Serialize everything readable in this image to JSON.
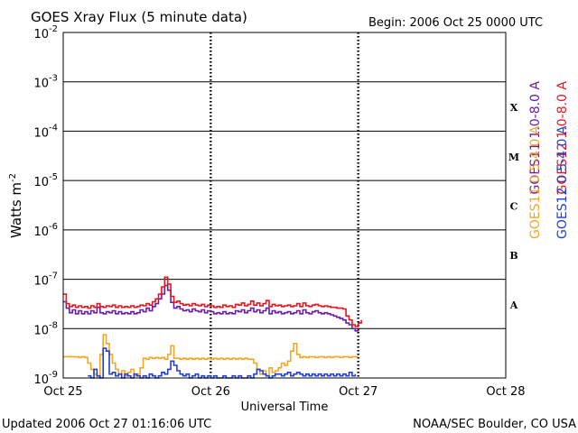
{
  "header": {
    "title": "GOES Xray Flux (5 minute data)",
    "begin": "Begin:  2006 Oct 25 0000 UTC"
  },
  "footer": {
    "updated": "Updated 2006 Oct 27 01:16:06 UTC",
    "source": "NOAA/SEC Boulder, CO USA"
  },
  "chart_data": {
    "type": "line",
    "title": "GOES Xray Flux (5 minute data)",
    "xlabel": "Universal Time",
    "ylabel_base": "Watts m",
    "ylabel_exp": "-2",
    "y_scale": "log",
    "ylim": [
      1e-09,
      0.01
    ],
    "y_ticks": [
      {
        "value": 0.01,
        "base": "10",
        "exp": "-2"
      },
      {
        "value": 0.001,
        "base": "10",
        "exp": "-3"
      },
      {
        "value": 0.0001,
        "base": "10",
        "exp": "-4"
      },
      {
        "value": 1e-05,
        "base": "10",
        "exp": "-5"
      },
      {
        "value": 1e-06,
        "base": "10",
        "exp": "-6"
      },
      {
        "value": 1e-07,
        "base": "10",
        "exp": "-7"
      },
      {
        "value": 1e-08,
        "base": "10",
        "exp": "-8"
      },
      {
        "value": 1e-09,
        "base": "10",
        "exp": "-9"
      }
    ],
    "x_unit": "hours since 2006 Oct 25 0000 UTC",
    "xlim": [
      0,
      72
    ],
    "x_ticks": [
      {
        "value": 0,
        "label": "Oct 25"
      },
      {
        "value": 24,
        "label": "Oct 26"
      },
      {
        "value": 48,
        "label": "Oct 27"
      },
      {
        "value": 72,
        "label": "Oct 28"
      }
    ],
    "flare_classes": [
      {
        "label": "X",
        "low": 0.0001,
        "high": 0.001
      },
      {
        "label": "M",
        "low": 1e-05,
        "high": 0.0001
      },
      {
        "label": "C",
        "low": 1e-06,
        "high": 1e-05
      },
      {
        "label": "B",
        "low": 1e-07,
        "high": 1e-06
      },
      {
        "label": "A",
        "low": 1e-08,
        "high": 1e-07
      }
    ],
    "gridlines": "horizontal at each decade; dashed vertical at each day",
    "legend_placement": "right",
    "series": [
      {
        "name": "GOES11 1.0-8.0 A",
        "color": "#6a1ba8",
        "x": [
          0,
          0.5,
          1,
          1.5,
          2,
          2.5,
          3,
          3.5,
          4,
          4.5,
          5,
          5.5,
          6,
          6.5,
          7,
          7.5,
          8,
          8.5,
          9,
          9.5,
          10,
          10.5,
          11,
          11.5,
          12,
          12.5,
          13,
          13.5,
          14,
          14.5,
          15,
          15.5,
          16,
          16.5,
          17,
          17.5,
          18,
          18.5,
          19,
          19.5,
          20,
          20.5,
          21,
          21.5,
          22,
          22.5,
          23,
          23.5,
          24,
          24.5,
          25,
          25.5,
          26,
          26.5,
          27,
          27.5,
          28,
          28.5,
          29,
          29.5,
          30,
          30.5,
          31,
          31.5,
          32,
          32.5,
          33,
          33.5,
          34,
          34.5,
          35,
          35.5,
          36,
          36.5,
          37,
          37.5,
          38,
          38.5,
          39,
          39.5,
          40,
          40.5,
          41,
          41.5,
          42,
          42.5,
          43,
          43.5,
          44,
          44.5,
          45,
          45.5,
          46,
          46.5,
          47,
          47.5,
          48
        ],
        "y": [
          3.5e-08,
          2.6e-08,
          2.1e-08,
          2.4e-08,
          2e-08,
          2.3e-08,
          2e-08,
          2.2e-08,
          2e-08,
          2.3e-08,
          2.1e-08,
          2.7e-08,
          2.1e-08,
          2e-08,
          2.2e-08,
          2.1e-08,
          2.3e-08,
          2e-08,
          2.2e-08,
          2e-08,
          2.1e-08,
          2e-08,
          2.2e-08,
          2e-08,
          2.1e-08,
          2.4e-08,
          2.2e-08,
          2.6e-08,
          2.3e-08,
          2.8e-08,
          3.2e-08,
          4e-08,
          5e-08,
          7.5e-08,
          6e-08,
          3.4e-08,
          2.6e-08,
          2.8e-08,
          2.5e-08,
          2.3e-08,
          2.4e-08,
          2.2e-08,
          2.5e-08,
          2.3e-08,
          2.2e-08,
          2.4e-08,
          2.1e-08,
          2.3e-08,
          2.2e-08,
          2e-08,
          2.1e-08,
          2e-08,
          2.2e-08,
          2e-08,
          2.1e-08,
          2e-08,
          2.3e-08,
          2.2e-08,
          2.4e-08,
          2.1e-08,
          2.3e-08,
          2.6e-08,
          2.2e-08,
          2.4e-08,
          2.1e-08,
          2.3e-08,
          2.6e-08,
          2e-08,
          2.3e-08,
          2.1e-08,
          2.2e-08,
          2e-08,
          2.1e-08,
          2.2e-08,
          2e-08,
          2.1e-08,
          2.3e-08,
          2e-08,
          2.4e-08,
          2.1e-08,
          2e-08,
          2.2e-08,
          2.3e-08,
          2.1e-08,
          2e-08,
          2.1e-08,
          2e-08,
          1.9e-08,
          1.8e-08,
          1.7e-08,
          1.6e-08,
          1.5e-08,
          1.3e-08,
          1.2e-08,
          1e-08,
          9e-09,
          9.5e-09
        ]
      },
      {
        "name": "GOES12 1.0-8.0 A",
        "color": "#e8141e",
        "x": [
          0,
          0.5,
          1,
          1.5,
          2,
          2.5,
          3,
          3.5,
          4,
          4.5,
          5,
          5.5,
          6,
          6.5,
          7,
          7.5,
          8,
          8.5,
          9,
          9.5,
          10,
          10.5,
          11,
          11.5,
          12,
          12.5,
          13,
          13.5,
          14,
          14.5,
          15,
          15.5,
          16,
          16.5,
          17,
          17.5,
          18,
          18.5,
          19,
          19.5,
          20,
          20.5,
          21,
          21.5,
          22,
          22.5,
          23,
          23.5,
          24,
          24.5,
          25,
          25.5,
          26,
          26.5,
          27,
          27.5,
          28,
          28.5,
          29,
          29.5,
          30,
          30.5,
          31,
          31.5,
          32,
          32.5,
          33,
          33.5,
          34,
          34.5,
          35,
          35.5,
          36,
          36.5,
          37,
          37.5,
          38,
          38.5,
          39,
          39.5,
          40,
          40.5,
          41,
          41.5,
          42,
          42.5,
          43,
          43.5,
          44,
          44.5,
          45,
          45.5,
          46,
          46.5,
          47,
          47.5,
          48,
          48.5
        ],
        "y": [
          5e-08,
          3.2e-08,
          2.8e-08,
          3e-08,
          2.7e-08,
          2.9e-08,
          2.7e-08,
          2.8e-08,
          2.6e-08,
          2.9e-08,
          2.7e-08,
          3.2e-08,
          2.8e-08,
          2.7e-08,
          2.9e-08,
          2.8e-08,
          3e-08,
          2.7e-08,
          2.9e-08,
          2.7e-08,
          2.8e-08,
          2.7e-08,
          2.9e-08,
          2.7e-08,
          2.8e-08,
          3e-08,
          2.9e-08,
          3.2e-08,
          3e-08,
          3.5e-08,
          4e-08,
          5e-08,
          7e-08,
          1.1e-07,
          8e-08,
          4.5e-08,
          3.4e-08,
          3.6e-08,
          3.2e-08,
          3e-08,
          3.1e-08,
          2.9e-08,
          3.2e-08,
          3e-08,
          2.9e-08,
          3.1e-08,
          2.8e-08,
          3e-08,
          2.9e-08,
          2.7e-08,
          2.8e-08,
          2.7e-08,
          3e-08,
          2.8e-08,
          2.9e-08,
          2.7e-08,
          3.1e-08,
          3e-08,
          3.3e-08,
          2.9e-08,
          3.1e-08,
          3.6e-08,
          3e-08,
          3.3e-08,
          2.9e-08,
          3.2e-08,
          3.7e-08,
          2.8e-08,
          3.1e-08,
          2.9e-08,
          3e-08,
          2.8e-08,
          2.9e-08,
          3e-08,
          2.8e-08,
          2.9e-08,
          3.2e-08,
          2.8e-08,
          3.3e-08,
          2.9e-08,
          2.8e-08,
          3e-08,
          3.1e-08,
          2.9e-08,
          2.8e-08,
          2.9e-08,
          2.8e-08,
          2.7e-08,
          2.7e-08,
          2.6e-08,
          2.6e-08,
          2.5e-08,
          1.8e-08,
          1.5e-08,
          1.2e-08,
          1.1e-08,
          1.3e-08,
          1.5e-08
        ]
      },
      {
        "name": "GOES11 0.5-4.0 A",
        "color": "#f5a623",
        "x": [
          0,
          0.5,
          1,
          1.5,
          2,
          2.5,
          3,
          3.5,
          4,
          4.5,
          5,
          5.5,
          6,
          6.5,
          7,
          7.5,
          8,
          8.5,
          9,
          9.5,
          10,
          10.5,
          11,
          11.5,
          12,
          12.5,
          13,
          13.5,
          14,
          14.5,
          15,
          15.5,
          16,
          16.5,
          17,
          17.5,
          18,
          18.5,
          19,
          19.5,
          20,
          20.5,
          21,
          21.5,
          22,
          22.5,
          23,
          23.5,
          24,
          24.5,
          25,
          25.5,
          26,
          26.5,
          27,
          27.5,
          28,
          28.5,
          29,
          29.5,
          30,
          30.5,
          31,
          31.5,
          32,
          32.5,
          33,
          33.5,
          34,
          34.5,
          35,
          35.5,
          36,
          36.5,
          37,
          37.5,
          38,
          38.5,
          39,
          39.5,
          40,
          40.5,
          41,
          41.5,
          42,
          42.5,
          43,
          43.5,
          44,
          44.5,
          45,
          45.5,
          46,
          46.5,
          47,
          47.5,
          48
        ],
        "y": [
          2.7e-09,
          2.7e-09,
          2.7e-09,
          2.7e-09,
          2.7e-09,
          2.6e-09,
          2.7e-09,
          2.6e-09,
          2e-09,
          1.5e-09,
          1.2e-09,
          1e-09,
          3e-09,
          7.5e-09,
          5e-09,
          3e-09,
          2e-09,
          1.5e-09,
          1.2e-09,
          1.4e-09,
          1.1e-09,
          1.3e-09,
          1.5e-09,
          1.1e-09,
          1.2e-09,
          1.6e-09,
          2.5e-09,
          2.4e-09,
          2.6e-09,
          2.5e-09,
          2.6e-09,
          2.5e-09,
          2.6e-09,
          2.4e-09,
          3e-09,
          4.5e-09,
          2.5e-09,
          2.5e-09,
          2.4e-09,
          2.5e-09,
          2.4e-09,
          2.5e-09,
          2.4e-09,
          2.5e-09,
          2.4e-09,
          2.5e-09,
          2.4e-09,
          2.5e-09,
          2.4e-09,
          2.5e-09,
          2.4e-09,
          2.5e-09,
          2.4e-09,
          2.5e-09,
          2.4e-09,
          2.5e-09,
          2.4e-09,
          2.5e-09,
          2.4e-09,
          2.5e-09,
          2.4e-09,
          2.4e-09,
          2e-09,
          1.5e-09,
          1.2e-09,
          1.4e-09,
          1.1e-09,
          1.6e-09,
          1.3e-09,
          1.4e-09,
          1.6e-09,
          2e-09,
          1.8e-09,
          2.2e-09,
          3.5e-09,
          5e-09,
          3e-09,
          2.6e-09,
          2.7e-09,
          2.6e-09,
          2.7e-09,
          2.7e-09,
          2.6e-09,
          2.7e-09,
          2.7e-09,
          2.6e-09,
          2.7e-09,
          2.6e-09,
          2.7e-09,
          2.7e-09,
          2.6e-09,
          2.7e-09,
          2.7e-09,
          2.6e-09,
          2.7e-09,
          2.7e-09,
          2.7e-09
        ]
      },
      {
        "name": "GOES12 0.5-4.0 A",
        "color": "#1f3fd6",
        "x": [
          4,
          4.5,
          5,
          5.5,
          6,
          6.5,
          7,
          7.5,
          8,
          8.5,
          9,
          9.5,
          10,
          10.5,
          11,
          11.5,
          12,
          12.5,
          13,
          13.5,
          14,
          14.5,
          15,
          15.5,
          16,
          16.5,
          17,
          17.5,
          18,
          18.5,
          19,
          19.5,
          20,
          20.5,
          21,
          21.5,
          22,
          22.5,
          23,
          23.5,
          24,
          24.5,
          25,
          25.5,
          26,
          26.5,
          27,
          27.5,
          28,
          28.5,
          29,
          29.5,
          30,
          30.5,
          31,
          31.5,
          32,
          32.5,
          33,
          33.5,
          34,
          34.5,
          35,
          35.5,
          36,
          36.5,
          37,
          37.5,
          38,
          38.5,
          39,
          39.5,
          40,
          40.5,
          41,
          41.5,
          42,
          42.5,
          43,
          43.5,
          44,
          44.5,
          45,
          45.5,
          46,
          46.5,
          47,
          47.5
        ],
        "y": [
          1.1e-09,
          1e-09,
          1.5e-09,
          1.1e-09,
          1e-09,
          4e-09,
          3.5e-09,
          1.2e-09,
          1.3e-09,
          1.1e-09,
          1.2e-09,
          1e-09,
          1.2e-09,
          1.1e-09,
          1e-09,
          1.2e-09,
          1.1e-09,
          1e-09,
          1.1e-09,
          1e-09,
          1.2e-09,
          1.1e-09,
          1e-09,
          1.1e-09,
          1.3e-09,
          1.2e-09,
          1.5e-09,
          2.2e-09,
          1.8e-09,
          1.4e-09,
          1.2e-09,
          1.1e-09,
          1.2e-09,
          1e-09,
          1.1e-09,
          1.2e-09,
          1e-09,
          1.1e-09,
          1e-09,
          1.1e-09,
          1e-09,
          1.1e-09,
          1e-09,
          1e-09,
          1.1e-09,
          1e-09,
          1e-09,
          1.1e-09,
          1e-09,
          1.1e-09,
          1e-09,
          1e-09,
          1.1e-09,
          1e-09,
          1.2e-09,
          1.5e-09,
          1.4e-09,
          1.2e-09,
          1.1e-09,
          1e-09,
          1.1e-09,
          1.2e-09,
          1.2e-09,
          1.1e-09,
          1.2e-09,
          1.3e-09,
          1.1e-09,
          1.2e-09,
          1.3e-09,
          1.2e-09,
          1.1e-09,
          1.2e-09,
          1.1e-09,
          1.2e-09,
          1.1e-09,
          1.2e-09,
          1.1e-09,
          1.2e-09,
          1.1e-09,
          1.2e-09,
          1.1e-09,
          1.2e-09,
          1.1e-09,
          1.2e-09,
          1.1e-09,
          1.3e-09,
          1.1e-09,
          1.2e-09
        ]
      }
    ]
  }
}
